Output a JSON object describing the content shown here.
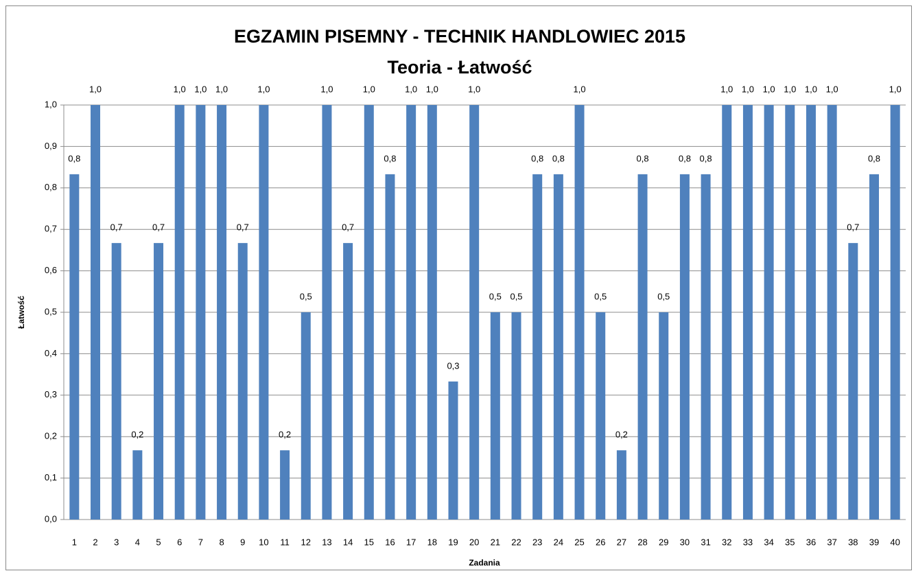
{
  "chart_data": {
    "type": "bar",
    "title": [
      "EGZAMIN PISEMNY  - TECHNIK HANDLOWIEC 2015",
      "Teoria - Łatwość"
    ],
    "y_label": "Łatwość",
    "x_label": "Zadania",
    "categories": [
      "1",
      "2",
      "3",
      "4",
      "5",
      "6",
      "7",
      "8",
      "9",
      "10",
      "11",
      "12",
      "13",
      "14",
      "15",
      "16",
      "17",
      "18",
      "19",
      "20",
      "21",
      "22",
      "23",
      "24",
      "25",
      "26",
      "27",
      "28",
      "29",
      "30",
      "31",
      "32",
      "33",
      "34",
      "35",
      "36",
      "37",
      "38",
      "39",
      "40"
    ],
    "values": [
      0.833,
      1,
      0.667,
      0.167,
      0.667,
      1,
      1,
      1,
      0.667,
      1,
      0.167,
      0.5,
      1,
      0.667,
      1,
      0.833,
      1,
      1,
      0.333,
      1,
      0.5,
      0.5,
      0.833,
      0.833,
      1,
      0.5,
      0.167,
      0.833,
      0.5,
      0.833,
      0.833,
      1,
      1,
      1,
      1,
      1,
      1,
      0.667,
      0.833,
      1
    ],
    "value_labels": [
      "0,8",
      "1,0",
      "0,7",
      "0,2",
      "0,7",
      "1,0",
      "1,0",
      "1,0",
      "0,7",
      "1,0",
      "0,2",
      "0,5",
      "1,0",
      "0,7",
      "1,0",
      "0,8",
      "1,0",
      "1,0",
      "0,3",
      "1,0",
      "0,5",
      "0,5",
      "0,8",
      "0,8",
      "1,0",
      "0,5",
      "0,2",
      "0,8",
      "0,5",
      "0,8",
      "0,8",
      "1,0",
      "1,0",
      "1,0",
      "1,0",
      "1,0",
      "1,0",
      "0,7",
      "0,8",
      "1,0"
    ],
    "color": "#4f81bd",
    "ylim": [
      0,
      1
    ],
    "yticks": [
      {
        "value": 0,
        "label": "0,0"
      },
      {
        "value": 0.1,
        "label": "0,1"
      },
      {
        "value": 0.2,
        "label": "0,2"
      },
      {
        "value": 0.3,
        "label": "0,3"
      },
      {
        "value": 0.4,
        "label": "0,4"
      },
      {
        "value": 0.5,
        "label": "0,5"
      },
      {
        "value": 0.6,
        "label": "0,6"
      },
      {
        "value": 0.7,
        "label": "0,7"
      },
      {
        "value": 0.8,
        "label": "0,8"
      },
      {
        "value": 0.9,
        "label": "0,9"
      },
      {
        "value": 1,
        "label": "1,0"
      }
    ],
    "grid": true
  }
}
